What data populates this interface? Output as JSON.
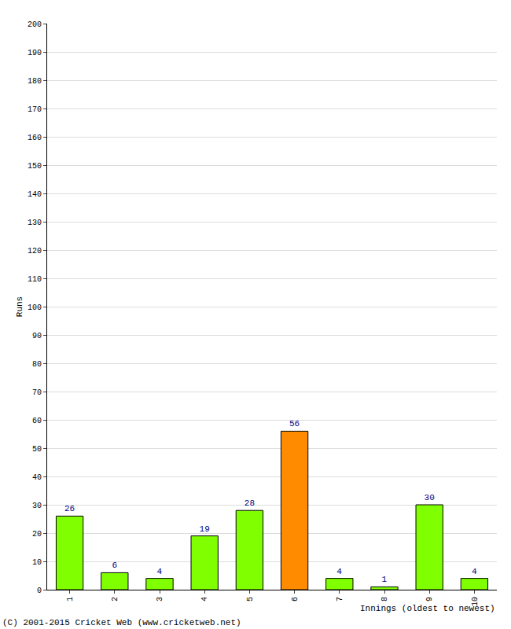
{
  "chart_data": {
    "type": "bar",
    "x_label": "Innings (oldest to newest)",
    "y_label": "Runs",
    "annotations": [
      "(C) 2001-2015 Cricket Web (www.cricketweb.net)"
    ],
    "categories": [
      "1",
      "2",
      "3",
      "4",
      "5",
      "6",
      "7",
      "8",
      "9",
      "10"
    ],
    "values": [
      26,
      6,
      4,
      19,
      28,
      56,
      4,
      1,
      30,
      4
    ],
    "colors": [
      "#80ff00",
      "#80ff00",
      "#80ff00",
      "#80ff00",
      "#80ff00",
      "#ff8c00",
      "#80ff00",
      "#80ff00",
      "#80ff00",
      "#80ff00"
    ],
    "ylim": [
      0,
      200
    ],
    "yticks": [
      0,
      10,
      20,
      30,
      40,
      50,
      60,
      70,
      80,
      90,
      100,
      110,
      120,
      130,
      140,
      150,
      160,
      170,
      180,
      190,
      200
    ],
    "grid": true,
    "data_labels": true
  }
}
